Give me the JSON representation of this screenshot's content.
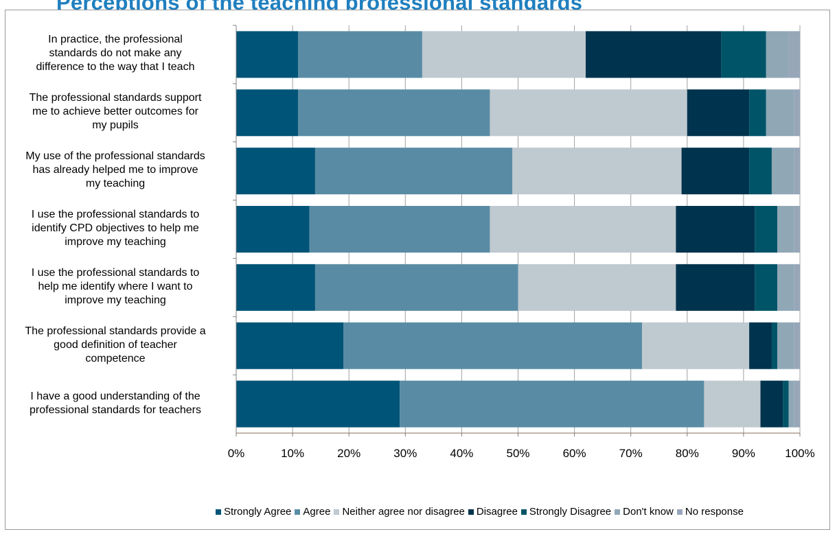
{
  "page": {
    "title": "Perceptions of the teaching professional standards"
  },
  "chart_data": {
    "type": "bar",
    "orientation": "horizontal",
    "stacked": "percent",
    "categories": [
      [
        "In practice, the professional",
        "standards do not make any",
        "difference to the way that I teach"
      ],
      [
        "The professional standards support",
        "me to achieve better outcomes for",
        "my pupils"
      ],
      [
        "My use of the professional standards",
        "has already helped me to improve",
        "my teaching"
      ],
      [
        "I use the professional standards to",
        "identify CPD objectives to help me",
        "improve my teaching"
      ],
      [
        "I use the professional standards to",
        "help me identify where I want to",
        "improve my teaching"
      ],
      [
        "The professional standards provide a",
        "good definition of teacher",
        "competence"
      ],
      [
        "I have a good understanding of the",
        "professional standards for teachers"
      ]
    ],
    "series": [
      {
        "name": "Strongly Agree",
        "color": "#005477",
        "values": [
          11,
          11,
          14,
          13,
          14,
          19,
          29
        ]
      },
      {
        "name": "Agree",
        "color": "#598ca4",
        "values": [
          22,
          34,
          35,
          32,
          36,
          53,
          54
        ]
      },
      {
        "name": "Neither agree nor disagree",
        "color": "#bfc9d0",
        "values": [
          29,
          35,
          30,
          33,
          28,
          19,
          10
        ]
      },
      {
        "name": "Disagree",
        "color": "#00334d",
        "values": [
          24,
          11,
          12,
          14,
          14,
          4,
          4
        ]
      },
      {
        "name": "Strongly Disagree",
        "color": "#005468",
        "values": [
          8,
          3,
          4,
          4,
          4,
          1,
          1
        ]
      },
      {
        "name": "Don't know",
        "color": "#90a7b6",
        "values": [
          4,
          5,
          4,
          3,
          3,
          3,
          1
        ]
      },
      {
        "name": "No response",
        "color": "#97a6b8",
        "values": [
          2,
          1,
          1,
          1,
          1,
          1,
          1
        ]
      }
    ],
    "xlim": [
      0,
      100
    ],
    "x_ticks": [
      "0%",
      "10%",
      "20%",
      "30%",
      "40%",
      "50%",
      "60%",
      "70%",
      "80%",
      "90%",
      "100%"
    ],
    "grid": true,
    "legend_position": "bottom"
  }
}
